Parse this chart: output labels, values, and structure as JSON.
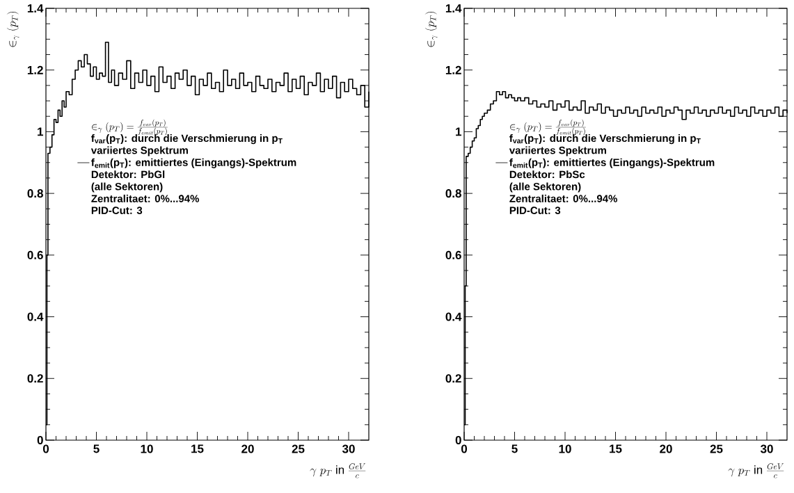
{
  "chart_data": [
    {
      "type": "step",
      "xlabel": "\\gamma\\ p_{T}\\ \\mathrm{in}\\ \\frac{GeV}{c}",
      "ylabel": "\\in_{\\gamma}(p_{T})",
      "xlim": [
        0,
        32
      ],
      "ylim": [
        0,
        1.4
      ],
      "xticks": [
        0,
        5,
        10,
        15,
        20,
        25,
        30
      ],
      "yticks": [
        0,
        0.2,
        0.4,
        0.6,
        0.8,
        1,
        1.2,
        1.4
      ],
      "legend": "left",
      "annotations": [
        "\\in_{\\gamma}(p_{T})=\\frac{f_{var}(p_{T})}{f_{emit}(p_{T})}",
        "f$_{var}$(p$_{T}$): durch die Verschmierung in p$_{T}$",
        "variiertes Spektrum",
        "Detektor: PbGl",
        "(alle Sektoren)",
        "Zentralitaet: 0%...94%",
        "PID-Cut: 3"
      ],
      "series": [
        {
          "name": "f$_{emit}$(p$_{T}$): emittiertes (Eingangs)-Spektrum",
          "color": "#000000",
          "x": [
            0,
            0.1,
            0.2,
            0.4,
            0.6,
            0.8,
            1.0,
            1.2,
            1.4,
            1.6,
            1.8,
            2.0,
            2.3,
            2.6,
            2.9,
            3.2,
            3.5,
            3.8,
            4.1,
            4.4,
            4.7,
            5.0,
            5.3,
            5.6,
            5.9,
            6.2,
            6.5,
            6.8,
            7.2,
            7.6,
            8.0,
            8.4,
            8.8,
            9.2,
            9.6,
            10.0,
            10.4,
            10.8,
            11.2,
            11.6,
            12.0,
            12.4,
            12.8,
            13.2,
            13.6,
            14.0,
            14.4,
            14.8,
            15.2,
            15.6,
            16.0,
            16.4,
            16.8,
            17.2,
            17.6,
            18.0,
            18.4,
            18.8,
            19.2,
            19.6,
            20.0,
            20.4,
            20.8,
            21.2,
            21.6,
            22.0,
            22.4,
            22.8,
            23.2,
            23.6,
            24.0,
            24.4,
            24.8,
            25.2,
            25.6,
            26.0,
            26.4,
            26.8,
            27.2,
            27.6,
            28.0,
            28.4,
            28.8,
            29.2,
            29.6,
            30.0,
            30.4,
            30.8,
            31.2,
            31.6,
            32.0
          ],
          "values": [
            0.05,
            0.6,
            0.93,
            0.95,
            0.99,
            1.04,
            1.03,
            1.07,
            1.05,
            1.1,
            1.08,
            1.13,
            1.12,
            1.17,
            1.2,
            1.23,
            1.21,
            1.25,
            1.22,
            1.18,
            1.21,
            1.17,
            1.19,
            1.18,
            1.29,
            1.16,
            1.2,
            1.15,
            1.19,
            1.17,
            1.23,
            1.14,
            1.19,
            1.16,
            1.2,
            1.15,
            1.18,
            1.13,
            1.21,
            1.16,
            1.18,
            1.14,
            1.19,
            1.17,
            1.2,
            1.15,
            1.18,
            1.12,
            1.17,
            1.15,
            1.19,
            1.14,
            1.16,
            1.13,
            1.2,
            1.15,
            1.17,
            1.14,
            1.19,
            1.15,
            1.16,
            1.13,
            1.18,
            1.15,
            1.14,
            1.17,
            1.13,
            1.16,
            1.15,
            1.19,
            1.13,
            1.17,
            1.14,
            1.18,
            1.12,
            1.16,
            1.15,
            1.19,
            1.13,
            1.17,
            1.14,
            1.18,
            1.11,
            1.16,
            1.13,
            1.17,
            1.14,
            1.12,
            1.15,
            1.08,
            1.13
          ]
        }
      ]
    },
    {
      "type": "step",
      "xlabel": "\\gamma\\ p_{T}\\ \\mathrm{in}\\ \\frac{GeV}{c}",
      "ylabel": "\\in_{\\gamma}(p_{T})",
      "xlim": [
        0,
        32
      ],
      "ylim": [
        0,
        1.4
      ],
      "xticks": [
        0,
        5,
        10,
        15,
        20,
        25,
        30
      ],
      "yticks": [
        0,
        0.2,
        0.4,
        0.6,
        0.8,
        1,
        1.2,
        1.4
      ],
      "legend": "left",
      "annotations": [
        "\\in_{\\gamma}(p_{T})=\\frac{f_{var}(p_{T})}{f_{emit}(p_{T})}",
        "f$_{var}$(p$_{T}$): durch die Verschmierung in p$_{T}$",
        "variiertes Spektrum",
        "Detektor: PbSc",
        "(alle Sektoren)",
        "Zentralitaet: 0%...94%",
        "PID-Cut: 3"
      ],
      "series": [
        {
          "name": "f$_{emit}$(p$_{T}$): emittiertes (Eingangs)-Spektrum",
          "color": "#000000",
          "x": [
            0,
            0.1,
            0.2,
            0.4,
            0.6,
            0.8,
            1.0,
            1.2,
            1.4,
            1.6,
            1.8,
            2.0,
            2.3,
            2.6,
            2.9,
            3.2,
            3.5,
            3.8,
            4.1,
            4.4,
            4.7,
            5.0,
            5.3,
            5.6,
            6.0,
            6.4,
            6.8,
            7.2,
            7.6,
            8.0,
            8.4,
            8.8,
            9.2,
            9.6,
            10.0,
            10.4,
            10.8,
            11.2,
            11.6,
            12.0,
            12.4,
            12.8,
            13.2,
            13.6,
            14.0,
            14.4,
            14.8,
            15.2,
            15.6,
            16.0,
            16.4,
            16.8,
            17.2,
            17.6,
            18.0,
            18.4,
            18.8,
            19.2,
            19.6,
            20.0,
            20.4,
            20.8,
            21.2,
            21.6,
            22.0,
            22.4,
            22.8,
            23.2,
            23.6,
            24.0,
            24.4,
            24.8,
            25.2,
            25.6,
            26.0,
            26.4,
            26.8,
            27.2,
            27.6,
            28.0,
            28.4,
            28.8,
            29.2,
            29.6,
            30.0,
            30.4,
            30.8,
            31.2,
            31.6,
            32.0
          ],
          "values": [
            0.05,
            0.5,
            0.92,
            0.93,
            0.95,
            0.97,
            0.98,
            1.01,
            1.02,
            1.04,
            1.05,
            1.06,
            1.07,
            1.09,
            1.1,
            1.13,
            1.12,
            1.13,
            1.11,
            1.12,
            1.11,
            1.1,
            1.11,
            1.1,
            1.11,
            1.09,
            1.1,
            1.08,
            1.09,
            1.08,
            1.1,
            1.07,
            1.09,
            1.08,
            1.1,
            1.07,
            1.08,
            1.07,
            1.1,
            1.06,
            1.08,
            1.07,
            1.09,
            1.06,
            1.08,
            1.07,
            1.05,
            1.07,
            1.06,
            1.08,
            1.06,
            1.07,
            1.05,
            1.08,
            1.06,
            1.07,
            1.06,
            1.08,
            1.05,
            1.07,
            1.06,
            1.08,
            1.07,
            1.04,
            1.07,
            1.06,
            1.08,
            1.06,
            1.07,
            1.05,
            1.07,
            1.06,
            1.08,
            1.06,
            1.07,
            1.05,
            1.08,
            1.06,
            1.07,
            1.05,
            1.08,
            1.06,
            1.07,
            1.05,
            1.07,
            1.06,
            1.08,
            1.05,
            1.07,
            1.06
          ]
        }
      ]
    }
  ]
}
